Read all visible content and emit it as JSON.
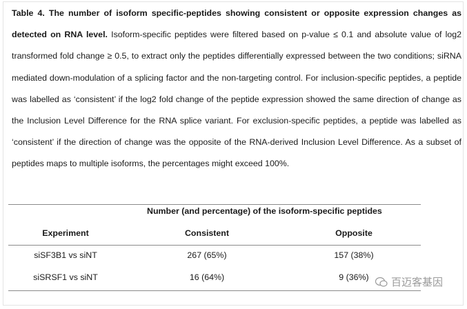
{
  "caption": {
    "title": "Table 4. The number of isoform specific-peptides showing consistent or opposite expression changes as detected on RNA level.",
    "body": " Isoform-specific peptides were filtered based on p-value ≤ 0.1 and absolute value of log2 transformed fold change ≥ 0.5, to extract only the peptides differentially expressed between the two conditions; siRNA mediated down-modulation of a splicing factor and the non-targeting control. For inclusion-specific peptides, a peptide was labelled as ‘consistent’ if the log2 fold change of the peptide expression showed the same direction of change as the Inclusion Level Difference for the RNA splice variant. For exclusion-specific peptides, a peptide was labelled as ‘consistent’ if the direction of change was the opposite of the RNA-derived Inclusion Level Difference. As a subset of peptides maps to multiple isoforms, the percentages might exceed 100%."
  },
  "table": {
    "group_header": "Number (and percentage) of the isoform-specific peptides",
    "columns": [
      "Experiment",
      "Consistent",
      "Opposite"
    ],
    "rows": [
      [
        "siSF3B1 vs siNT",
        "267 (65%)",
        "157 (38%)"
      ],
      [
        "siSRSF1 vs siNT",
        "16 (64%)",
        "9 (36%)"
      ]
    ]
  },
  "watermark": {
    "text": "百迈客基因",
    "icon": "wechat-icon"
  }
}
